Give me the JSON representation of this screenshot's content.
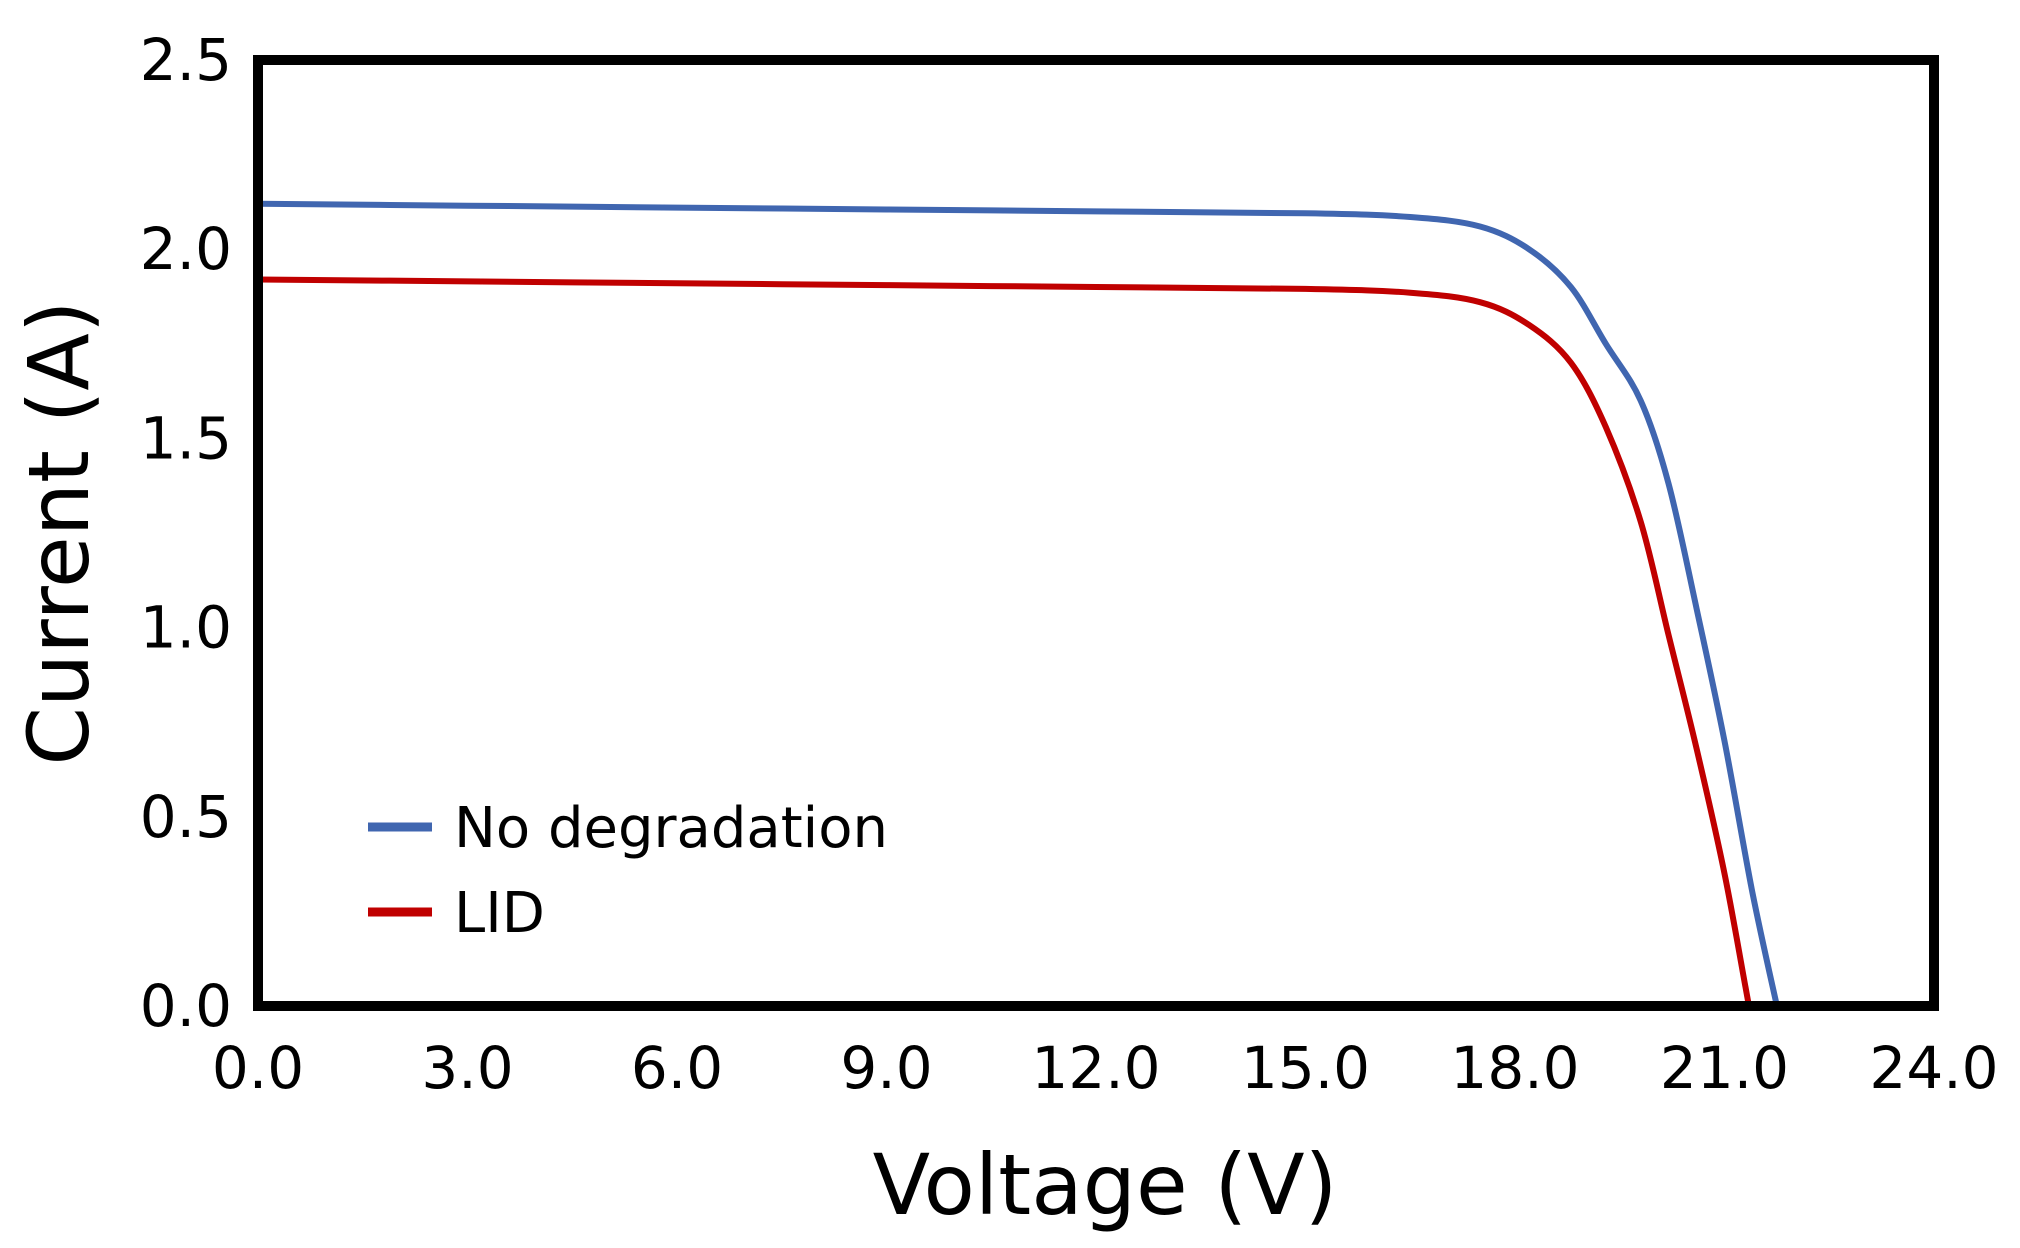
{
  "chart_data": {
    "type": "line",
    "title": "",
    "xlabel": "Voltage (V)",
    "ylabel": "Current (A)",
    "xlim": [
      0,
      24
    ],
    "ylim": [
      0,
      2.5
    ],
    "xticks": [
      "0.0",
      "3.0",
      "6.0",
      "9.0",
      "12.0",
      "15.0",
      "18.0",
      "21.0",
      "24.0"
    ],
    "yticks": [
      "0.0",
      "0.5",
      "1.0",
      "1.5",
      "2.0",
      "2.5"
    ],
    "grid": false,
    "legend_position": "bottom-left",
    "series": [
      {
        "name": "No degradation",
        "color": "#4066b0",
        "x": [
          0,
          3,
          6,
          9,
          12,
          15,
          16.5,
          17.5,
          18.2,
          18.8,
          19.3,
          19.8,
          20.2,
          20.6,
          21.0,
          21.4,
          21.75
        ],
        "y": [
          2.12,
          2.115,
          2.11,
          2.105,
          2.1,
          2.095,
          2.085,
          2.06,
          2.0,
          1.9,
          1.75,
          1.6,
          1.38,
          1.05,
          0.7,
          0.3,
          0.0
        ]
      },
      {
        "name": "LID",
        "color": "#c00000",
        "x": [
          0,
          3,
          6,
          9,
          12,
          15,
          16.5,
          17.5,
          18.2,
          18.8,
          19.3,
          19.8,
          20.2,
          20.6,
          21.0,
          21.3,
          21.35
        ],
        "y": [
          1.92,
          1.915,
          1.91,
          1.905,
          1.9,
          1.895,
          1.885,
          1.86,
          1.8,
          1.7,
          1.53,
          1.28,
          0.98,
          0.68,
          0.35,
          0.05,
          0.0
        ]
      }
    ]
  }
}
